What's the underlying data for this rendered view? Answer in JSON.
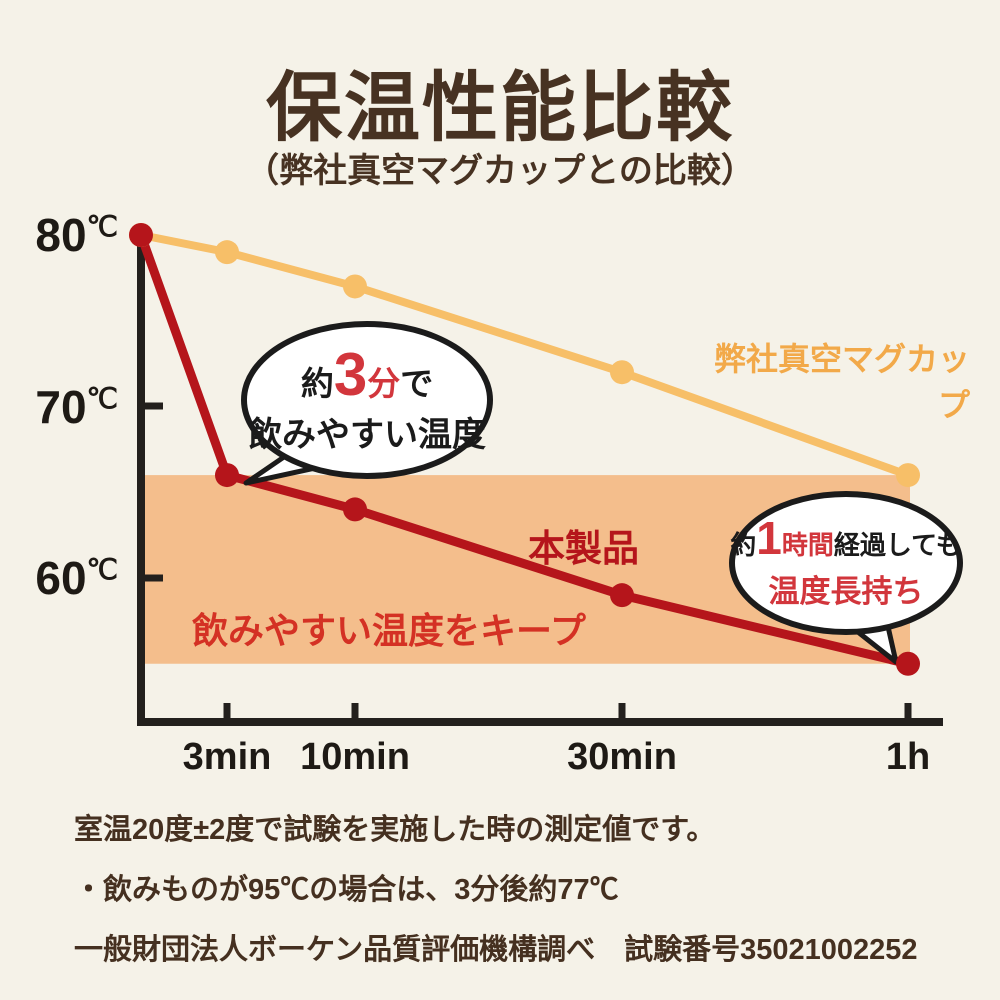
{
  "page": {
    "title": "保温性能比較",
    "subtitle": "（弊社真空マグカップとの比較）"
  },
  "colors": {
    "background": "#F5F2E8",
    "title_brown": "#473222",
    "axis_black": "#23201D",
    "product_red": "#B5151B",
    "mug_yellow": "#F7BF68",
    "legend_yellow": "#F2A949",
    "band_orange": "#F4BE8C",
    "band_text_red": "#D43124",
    "bubble_accent_red": "#D2363C"
  },
  "chart_data": {
    "type": "line",
    "title": "保温性能比較",
    "subtitle": "（弊社真空マグカップとの比較）",
    "x_minutes": [
      0,
      3,
      10,
      30,
      60
    ],
    "x_tick_labels": [
      "3min",
      "10min",
      "30min",
      "1h"
    ],
    "y_axis": [
      {
        "value": "80",
        "unit": "℃"
      },
      {
        "value": "70",
        "unit": "℃"
      },
      {
        "value": "60",
        "unit": "℃"
      }
    ],
    "ylim": [
      52,
      82
    ],
    "grid": false,
    "series": [
      {
        "name": "本製品",
        "color": "#B5151B",
        "values": [
          80,
          66,
          64,
          59,
          55
        ]
      },
      {
        "name": "弊社真空マグカップ",
        "color": "#F7BF68",
        "values": [
          80,
          79,
          77,
          72,
          66
        ]
      }
    ],
    "band": {
      "label": "飲みやすい温度をキープ",
      "from": 55,
      "to": 66,
      "color": "#F4BE8C"
    },
    "annotations": [
      {
        "pre": "約",
        "big": "3",
        "mid": "分",
        "post": "で",
        "line2": "飲みやすい温度"
      },
      {
        "pre": "約",
        "big": "1",
        "mid": "時間",
        "post": "経過しても",
        "line2": "温度長持ち"
      }
    ]
  },
  "footer": {
    "lines": [
      "室温20度±2度で試験を実施した時の測定値です。",
      "・飲みものが95℃の場合は、3分後約77℃",
      "一般財団法人ボーケン品質評価機構調べ　試験番号35021002252"
    ]
  }
}
